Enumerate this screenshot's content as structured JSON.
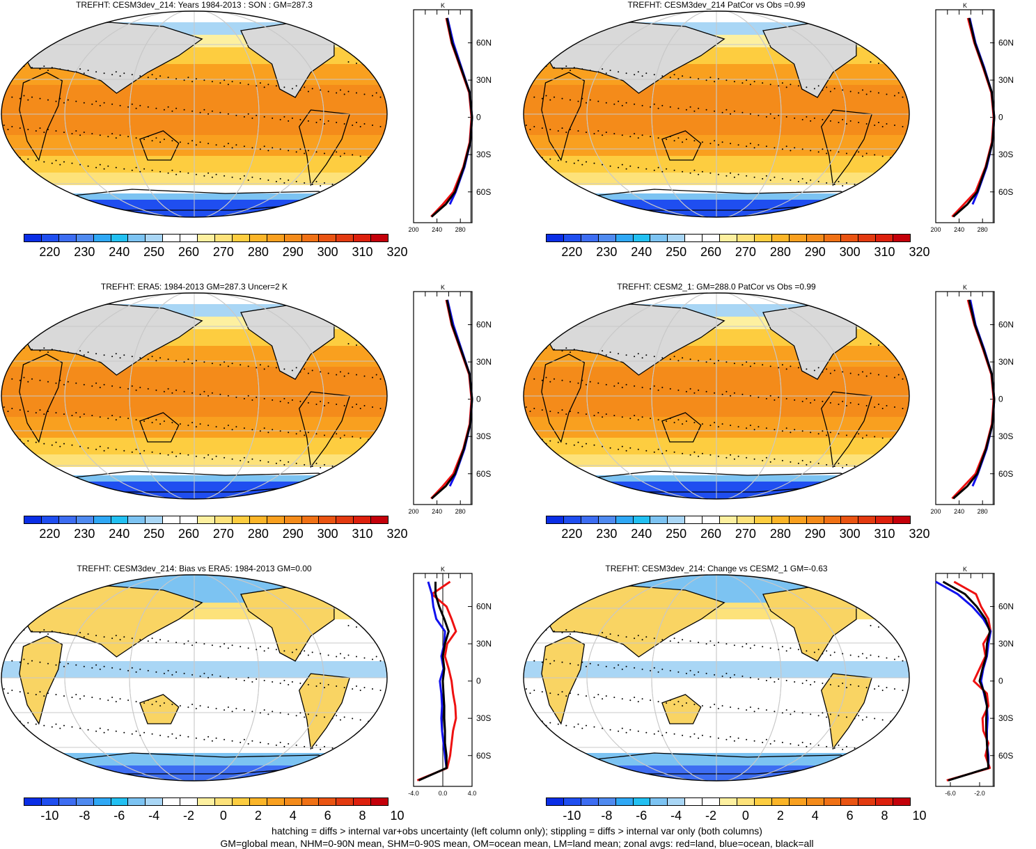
{
  "colors": {
    "abs_scale": [
      "#0a2ee6",
      "#1f4ef0",
      "#3d6df2",
      "#4f8af0",
      "#2fa8f5",
      "#22c0f2",
      "#7cc3f2",
      "#a9d6f5",
      "#ffffff",
      "#ffffff",
      "#fdf0a0",
      "#fde27a",
      "#fdcd40",
      "#fbb528",
      "#f9a01f",
      "#f48b1a",
      "#f07115",
      "#ea5412",
      "#e33a10",
      "#dd200d",
      "#c4000a"
    ],
    "diff_scale": [
      "#0a2ee6",
      "#1f4ef0",
      "#3d6df2",
      "#4f8af0",
      "#2fa8f5",
      "#22c0f2",
      "#7cc3f2",
      "#a9d6f5",
      "#ffffff",
      "#ffffff",
      "#fdf0a0",
      "#fde27a",
      "#fdcd40",
      "#fbb528",
      "#f9a01f",
      "#f48b1a",
      "#f07115",
      "#ea5412",
      "#e33a10",
      "#dd200d",
      "#c4000a"
    ],
    "land_zonal": "#ee1111",
    "ocean_zonal": "#1111ee",
    "all_zonal": "#000000"
  },
  "panels": [
    {
      "title": "TREFHT: CESM3dev_214: Years 1984-2013 : SON : GM=287.3",
      "kind": "abs",
      "cbar_labels": [
        "220",
        "230",
        "240",
        "250",
        "260",
        "270",
        "280",
        "290",
        "300",
        "310",
        "320"
      ],
      "zonal_xlabels": [
        "200",
        "240",
        "280"
      ],
      "zonal_unit": "K"
    },
    {
      "title": "TREFHT: CESM3dev_214 PatCor vs Obs =0.99",
      "kind": "abs",
      "cbar_labels": [
        "220",
        "230",
        "240",
        "250",
        "260",
        "270",
        "280",
        "290",
        "300",
        "310",
        "320"
      ],
      "zonal_xlabels": [
        "200",
        "240",
        "280"
      ],
      "zonal_unit": "K"
    },
    {
      "title": "TREFHT: ERA5: 1984-2013 GM=287.3 Uncer=2 K",
      "kind": "abs",
      "cbar_labels": [
        "220",
        "230",
        "240",
        "250",
        "260",
        "270",
        "280",
        "290",
        "300",
        "310",
        "320"
      ],
      "zonal_xlabels": [
        "200",
        "240",
        "280"
      ],
      "zonal_unit": "K"
    },
    {
      "title": "TREFHT: CESM2_1: GM=288.0 PatCor vs Obs =0.99",
      "kind": "abs",
      "cbar_labels": [
        "220",
        "230",
        "240",
        "250",
        "260",
        "270",
        "280",
        "290",
        "300",
        "310",
        "320"
      ],
      "zonal_xlabels": [
        "200",
        "240",
        "280"
      ],
      "zonal_unit": "K"
    },
    {
      "title": "TREFHT: CESM3dev_214: Bias vs ERA5: 1984-2013  GM=0.00",
      "kind": "diff",
      "cbar_labels": [
        "-10",
        "-8",
        "-6",
        "-4",
        "-2",
        "0",
        "2",
        "4",
        "6",
        "8",
        "10"
      ],
      "zonal_xlabels": [
        "-4.0",
        "0.0",
        "4.0"
      ],
      "zonal_unit": "K"
    },
    {
      "title": "TREFHT: CESM3dev_214: Change vs CESM2_1 GM=-0.63",
      "kind": "diff",
      "cbar_labels": [
        "-10",
        "-8",
        "-6",
        "-4",
        "-2",
        "0",
        "2",
        "4",
        "6",
        "8",
        "10"
      ],
      "zonal_xlabels": [
        "-6.0",
        "-2.0"
      ],
      "zonal_unit": "K"
    }
  ],
  "lat_labels": [
    "60N",
    "30N",
    "0",
    "30S",
    "60S"
  ],
  "footnote": {
    "line1": "hatching = diffs > internal var+obs uncertainty (left column only); stippling = diffs > internal var only (both columns)",
    "line2": "GM=global mean, NHM=0-90N mean, SHM=0-90S mean, OM=ocean mean, LM=land mean; zonal avgs: red=land, blue=ocean, black=all"
  },
  "chart_data": [
    {
      "type": "heatmap",
      "title": "TREFHT: CESM3dev_214: Years 1984-2013 : SON : GM=287.3",
      "colorbar_ticks": [
        220,
        230,
        240,
        250,
        260,
        270,
        280,
        290,
        300,
        310,
        320
      ],
      "zonal_mean": {
        "xlim": [
          200,
          300
        ],
        "xticks": [
          200,
          240,
          280
        ],
        "ylabels": [
          "60N",
          "30N",
          "0",
          "30S",
          "60S"
        ],
        "lat": [
          80,
          60,
          40,
          20,
          0,
          -20,
          -40,
          -60,
          -70,
          -80
        ],
        "land": [
          256,
          265,
          280,
          295,
          299,
          296,
          285,
          268,
          250,
          230
        ],
        "ocean": [
          258,
          268,
          282,
          296,
          300,
          297,
          287,
          272,
          262,
          null
        ],
        "all": [
          257,
          266,
          281,
          296,
          300,
          297,
          286,
          271,
          255,
          231
        ]
      }
    },
    {
      "type": "heatmap",
      "title": "TREFHT: CESM3dev_214 PatCor vs Obs =0.99",
      "colorbar_ticks": [
        220,
        230,
        240,
        250,
        260,
        270,
        280,
        290,
        300,
        310,
        320
      ],
      "zonal_mean": {
        "xlim": [
          200,
          300
        ],
        "xticks": [
          200,
          240,
          280
        ],
        "ylabels": [
          "60N",
          "30N",
          "0",
          "30S",
          "60S"
        ],
        "lat": [
          80,
          60,
          40,
          20,
          0,
          -20,
          -40,
          -60,
          -70,
          -80
        ],
        "land": [
          255,
          266,
          281,
          295,
          299,
          296,
          285,
          268,
          248,
          228
        ],
        "ocean": [
          258,
          268,
          283,
          296,
          300,
          297,
          287,
          272,
          263,
          null
        ],
        "all": [
          257,
          267,
          282,
          296,
          300,
          297,
          286,
          271,
          254,
          230
        ]
      }
    },
    {
      "type": "heatmap",
      "title": "TREFHT: ERA5: 1984-2013 GM=287.3 Uncer=2 K",
      "colorbar_ticks": [
        220,
        230,
        240,
        250,
        260,
        270,
        280,
        290,
        300,
        310,
        320
      ],
      "zonal_mean": {
        "xlim": [
          200,
          300
        ],
        "xticks": [
          200,
          240,
          280
        ],
        "ylabels": [
          "60N",
          "30N",
          "0",
          "30S",
          "60S"
        ],
        "lat": [
          80,
          60,
          40,
          20,
          0,
          -20,
          -40,
          -60,
          -70,
          -80
        ],
        "land": [
          256,
          265,
          280,
          295,
          299,
          296,
          285,
          268,
          250,
          230
        ],
        "ocean": [
          258,
          268,
          282,
          296,
          300,
          297,
          287,
          272,
          262,
          null
        ],
        "all": [
          257,
          266,
          281,
          296,
          300,
          297,
          286,
          271,
          255,
          231
        ]
      }
    },
    {
      "type": "heatmap",
      "title": "TREFHT: CESM2_1: GM=288.0 PatCor vs Obs =0.99",
      "colorbar_ticks": [
        220,
        230,
        240,
        250,
        260,
        270,
        280,
        290,
        300,
        310,
        320
      ],
      "zonal_mean": {
        "xlim": [
          200,
          300
        ],
        "xticks": [
          200,
          240,
          280
        ],
        "ylabels": [
          "60N",
          "30N",
          "0",
          "30S",
          "60S"
        ],
        "lat": [
          80,
          60,
          40,
          20,
          0,
          -20,
          -40,
          -60,
          -70,
          -80
        ],
        "land": [
          255,
          266,
          281,
          295,
          299,
          296,
          285,
          268,
          248,
          228
        ],
        "ocean": [
          259,
          268,
          283,
          296,
          300,
          297,
          287,
          272,
          263,
          null
        ],
        "all": [
          257,
          267,
          282,
          296,
          300,
          297,
          286,
          271,
          254,
          230
        ]
      }
    },
    {
      "type": "heatmap",
      "title": "TREFHT: CESM3dev_214: Bias vs ERA5: 1984-2013  GM=0.00",
      "colorbar_ticks": [
        -10,
        -8,
        -6,
        -4,
        -2,
        0,
        2,
        4,
        6,
        8,
        10
      ],
      "zonal_mean": {
        "xlim": [
          -4,
          4
        ],
        "xticks": [
          -4,
          0,
          4
        ],
        "ylabels": [
          "60N",
          "30N",
          "0",
          "30S",
          "60S"
        ],
        "lat": [
          80,
          70,
          60,
          50,
          40,
          30,
          20,
          10,
          0,
          -10,
          -20,
          -30,
          -40,
          -50,
          -60,
          -70,
          -80
        ],
        "land": [
          1.0,
          -1.5,
          0.5,
          1.2,
          1.8,
          0.6,
          0.3,
          0.8,
          1.2,
          1.4,
          1.7,
          1.8,
          1.4,
          1.2,
          1.0,
          0.6,
          -3.5
        ],
        "ocean": [
          -2.0,
          -1.5,
          -1.3,
          -0.9,
          0.3,
          0.2,
          -0.2,
          0.1,
          -0.4,
          -0.2,
          -0.1,
          -0.2,
          -0.1,
          0.1,
          0.3,
          0.5,
          null
        ],
        "all": [
          -1.0,
          -1.0,
          -0.5,
          0.2,
          0.8,
          0.3,
          0.0,
          0.2,
          0.0,
          0.1,
          0.2,
          0.2,
          0.3,
          0.3,
          0.5,
          0.5,
          -3.3
        ]
      }
    },
    {
      "type": "heatmap",
      "title": "TREFHT: CESM3dev_214: Change vs CESM2_1 GM=-0.63",
      "colorbar_ticks": [
        -10,
        -8,
        -6,
        -4,
        -2,
        0,
        2,
        4,
        6,
        8,
        10
      ],
      "zonal_mean": {
        "xlim": [
          -8,
          0
        ],
        "xticks": [
          -6,
          -2
        ],
        "ylabels": [
          "60N",
          "30N",
          "0",
          "30S",
          "60S"
        ],
        "lat": [
          80,
          70,
          60,
          50,
          40,
          30,
          20,
          10,
          0,
          -10,
          -20,
          -30,
          -40,
          -50,
          -60,
          -70,
          -80
        ],
        "land": [
          -5.5,
          -2.5,
          -1.8,
          -0.8,
          -0.5,
          -1.5,
          -1.2,
          -2.0,
          -2.8,
          -1.0,
          -0.8,
          -1.6,
          -1.5,
          -0.8,
          -1.2,
          -0.6,
          -6.5
        ],
        "ocean": [
          -8.0,
          -5.0,
          -3.0,
          -1.5,
          -0.5,
          -0.8,
          -1.0,
          -1.5,
          -1.8,
          -1.4,
          -1.0,
          -0.9,
          -1.0,
          -1.0,
          -0.8,
          -0.8,
          null
        ],
        "all": [
          -7.0,
          -4.0,
          -2.4,
          -1.2,
          -0.6,
          -1.0,
          -1.1,
          -1.6,
          -2.0,
          -1.3,
          -1.0,
          -1.1,
          -1.1,
          -1.0,
          -0.9,
          -0.8,
          -6.3
        ]
      }
    }
  ]
}
